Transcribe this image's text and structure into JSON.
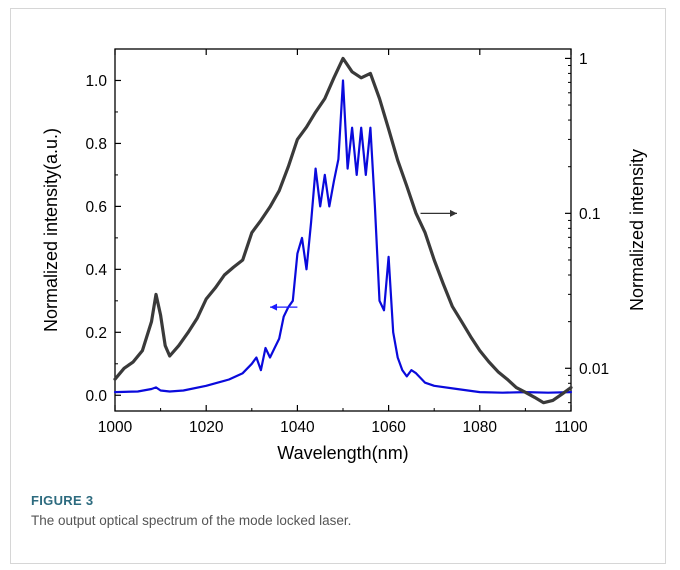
{
  "figure": {
    "label": "FIGURE 3",
    "caption": "The output optical spectrum of the mode locked laser."
  },
  "chart_data": {
    "type": "line",
    "xlabel": "Wavelength(nm)",
    "ylabel_left": "Normalized intensity(a.u.)",
    "ylabel_right": "Normalized intensity",
    "xlim": [
      1000,
      1100
    ],
    "ylim_left": [
      -0.05,
      1.1
    ],
    "ylim_right": [
      0.0053,
      1.15
    ],
    "right_scale": "log",
    "x_ticks": [
      1000,
      1020,
      1040,
      1060,
      1080,
      1100
    ],
    "x_tick_labels": [
      "1000",
      "1020",
      "1040",
      "1060",
      "1080",
      "1100"
    ],
    "y_left_ticks": [
      0.0,
      0.2,
      0.4,
      0.6,
      0.8,
      1.0
    ],
    "y_left_tick_labels": [
      "0.0",
      "0.2",
      "0.4",
      "0.6",
      "0.8",
      "1.0"
    ],
    "y_right_ticks": [
      0.01,
      0.1,
      1
    ],
    "y_right_tick_labels": [
      "0.01",
      "0.1",
      "1"
    ],
    "grid": false,
    "series": [
      {
        "axis": "left",
        "color": "#0a0adc",
        "x": [
          1000,
          1005,
          1008,
          1009,
          1010,
          1012,
          1015,
          1020,
          1025,
          1028,
          1030,
          1031,
          1032,
          1033,
          1034,
          1035,
          1036,
          1037,
          1038,
          1039,
          1040,
          1041,
          1042,
          1043,
          1044,
          1045,
          1046,
          1047,
          1048,
          1049,
          1050,
          1051,
          1052,
          1053,
          1054,
          1055,
          1056,
          1057,
          1058,
          1059,
          1060,
          1061,
          1062,
          1063,
          1064,
          1065,
          1066,
          1068,
          1070,
          1075,
          1080,
          1085,
          1090,
          1095,
          1100
        ],
        "y": [
          0.01,
          0.012,
          0.02,
          0.025,
          0.015,
          0.012,
          0.015,
          0.03,
          0.05,
          0.07,
          0.1,
          0.12,
          0.08,
          0.15,
          0.12,
          0.15,
          0.18,
          0.25,
          0.28,
          0.3,
          0.45,
          0.5,
          0.4,
          0.55,
          0.72,
          0.6,
          0.7,
          0.6,
          0.68,
          0.75,
          1.0,
          0.72,
          0.85,
          0.7,
          0.85,
          0.7,
          0.85,
          0.6,
          0.3,
          0.27,
          0.44,
          0.2,
          0.12,
          0.08,
          0.06,
          0.08,
          0.07,
          0.04,
          0.03,
          0.02,
          0.01,
          0.008,
          0.01,
          0.008,
          0.01
        ]
      },
      {
        "axis": "right",
        "color": "#3a3a3a",
        "x": [
          1000,
          1002,
          1004,
          1006,
          1008,
          1009,
          1010,
          1011,
          1012,
          1014,
          1016,
          1018,
          1020,
          1022,
          1024,
          1026,
          1028,
          1030,
          1032,
          1034,
          1036,
          1038,
          1040,
          1042,
          1044,
          1046,
          1048,
          1050,
          1052,
          1054,
          1056,
          1058,
          1060,
          1062,
          1064,
          1066,
          1068,
          1070,
          1072,
          1074,
          1076,
          1078,
          1080,
          1082,
          1084,
          1086,
          1088,
          1090,
          1092,
          1094,
          1096,
          1098,
          1100
        ],
        "y": [
          0.0085,
          0.01,
          0.011,
          0.013,
          0.02,
          0.03,
          0.022,
          0.014,
          0.012,
          0.014,
          0.017,
          0.021,
          0.028,
          0.033,
          0.04,
          0.045,
          0.05,
          0.075,
          0.09,
          0.11,
          0.14,
          0.2,
          0.3,
          0.36,
          0.45,
          0.55,
          0.75,
          1.0,
          0.82,
          0.75,
          0.8,
          0.55,
          0.35,
          0.22,
          0.15,
          0.1,
          0.075,
          0.05,
          0.035,
          0.025,
          0.02,
          0.016,
          0.013,
          0.011,
          0.0095,
          0.0085,
          0.0075,
          0.007,
          0.0065,
          0.006,
          0.0062,
          0.0068,
          0.0075
        ]
      }
    ],
    "annotations": [
      {
        "type": "arrow",
        "direction": "left",
        "color": "#1a1aff",
        "target_axis": "left",
        "x_from": 1040,
        "x_to": 1034,
        "y": 0.28
      },
      {
        "type": "arrow",
        "direction": "right",
        "color": "#333333",
        "target_axis": "right",
        "x_from": 1067,
        "x_to": 1075,
        "y": 0.1
      }
    ]
  }
}
